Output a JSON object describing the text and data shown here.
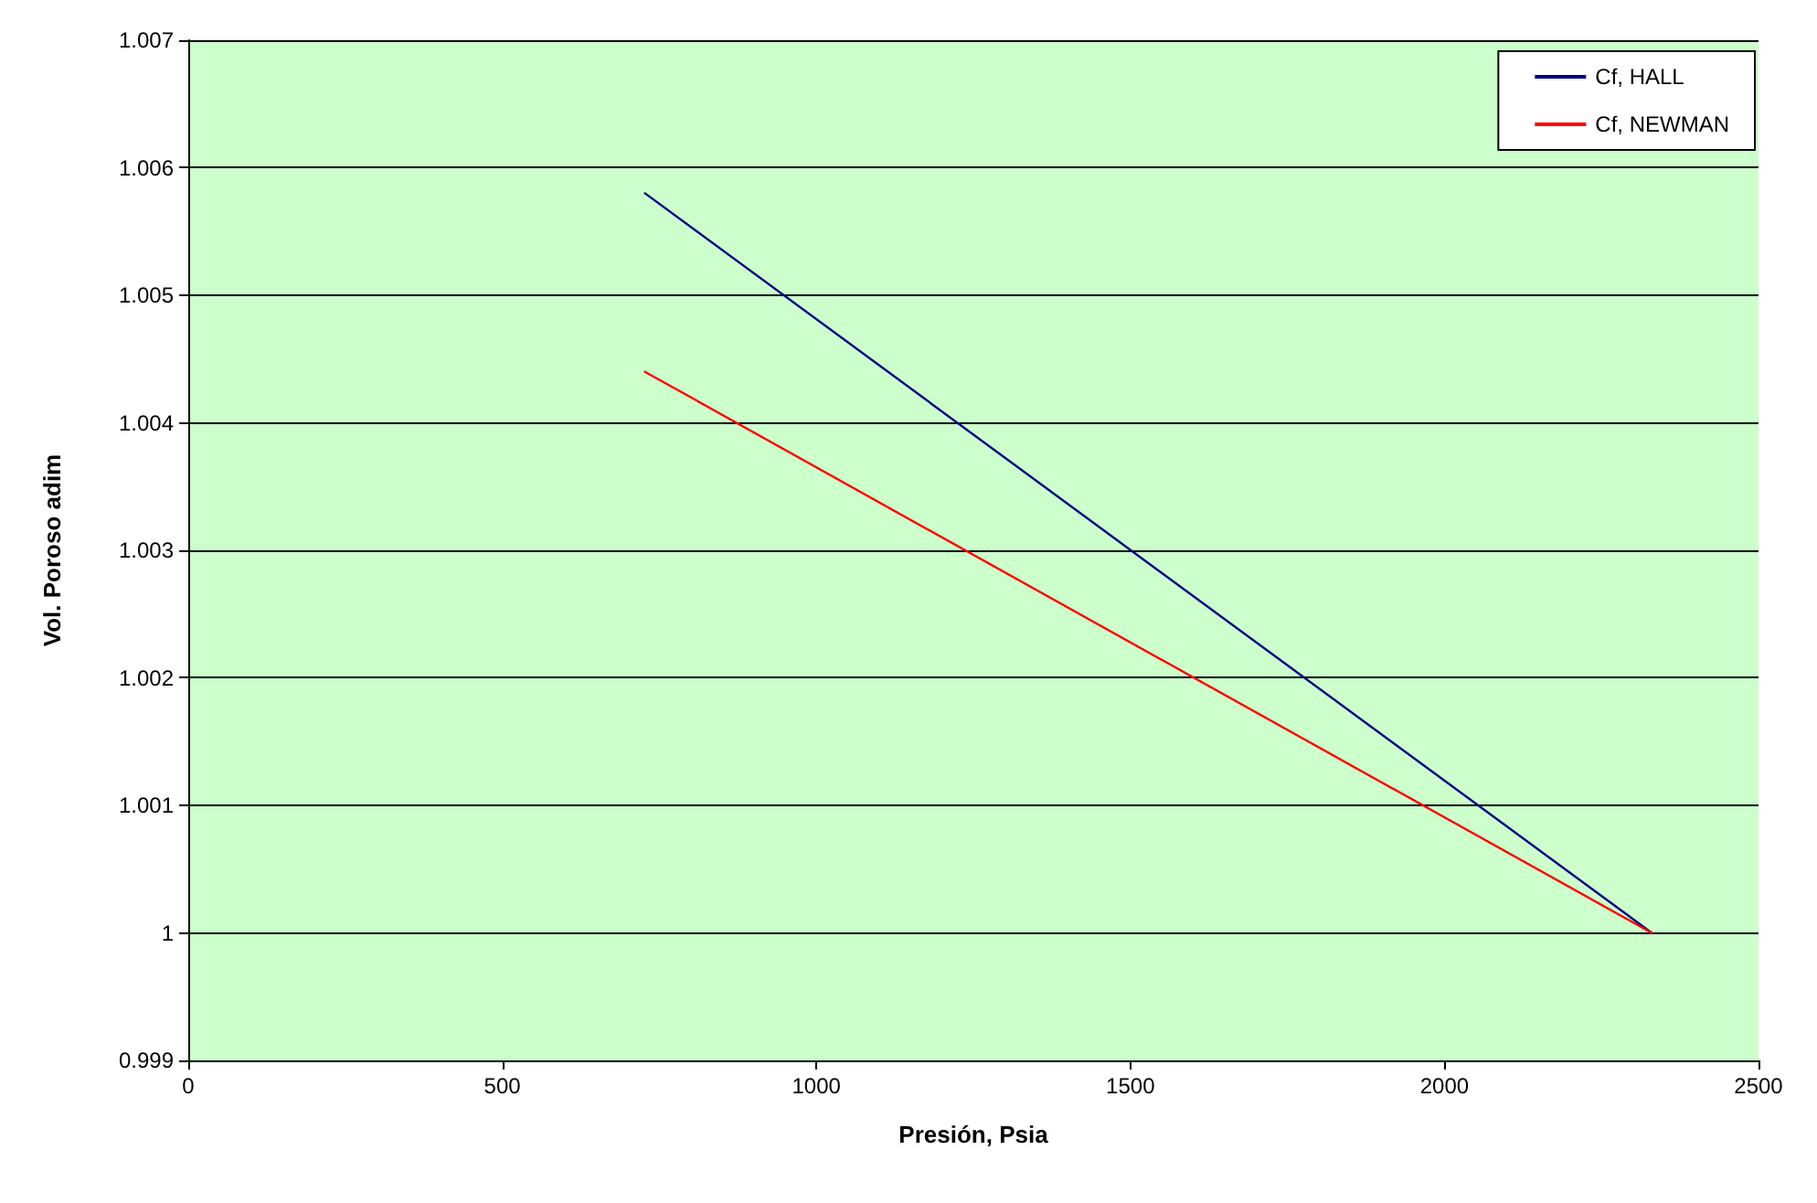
{
  "chart_data": {
    "type": "line",
    "xlabel": "Presión, Psia",
    "ylabel": "Vol. Poroso adim",
    "x": [
      727,
      2330
    ],
    "series": [
      {
        "name": "Cf, HALL",
        "color": "#000080",
        "values": [
          1.0058,
          1.0
        ]
      },
      {
        "name": "Cf, NEWMAN",
        "color": "#ff0000",
        "values": [
          1.0044,
          1.0
        ]
      }
    ],
    "xlim": [
      0,
      2500
    ],
    "xticks": [
      0,
      500,
      1000,
      1500,
      2000,
      2500
    ],
    "ylim": [
      0.999,
      1.007
    ],
    "yticks": [
      0.999,
      1,
      1.001,
      1.002,
      1.003,
      1.004,
      1.005,
      1.006,
      1.007
    ],
    "grid": "y",
    "legend": "top right",
    "marker": "none",
    "line_style": "solid"
  }
}
